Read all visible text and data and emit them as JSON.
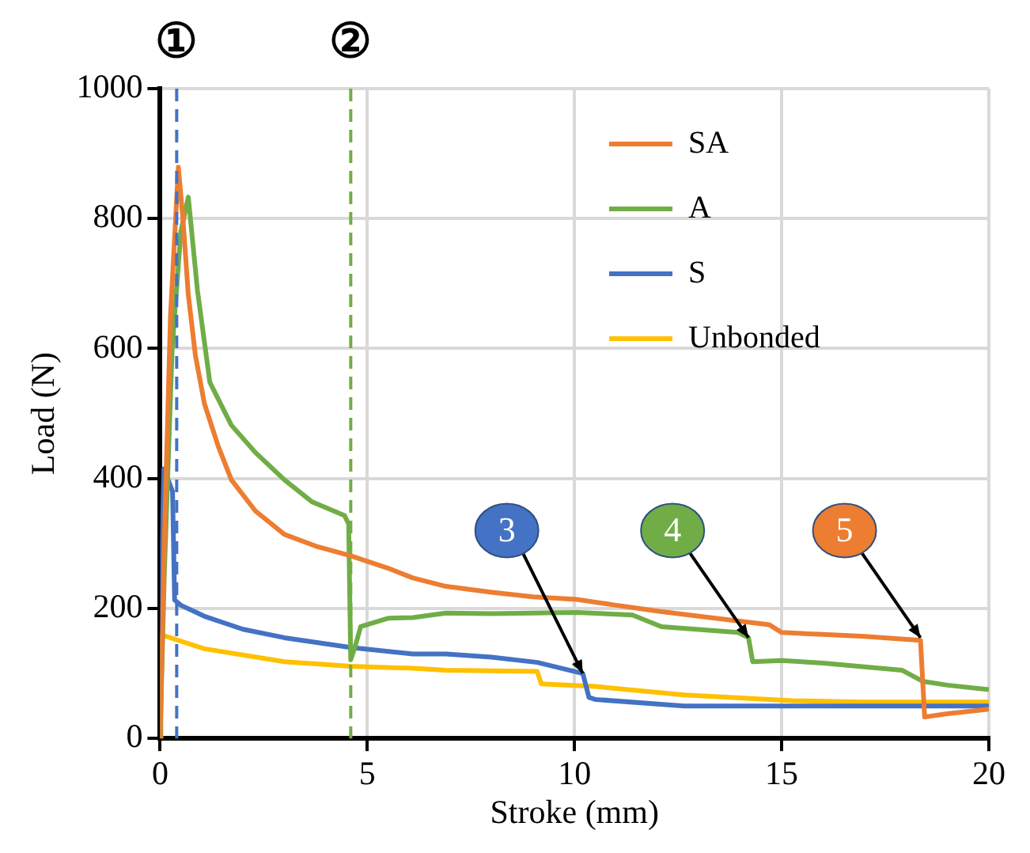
{
  "chart_data": {
    "type": "line",
    "xlabel": "Stroke (mm)",
    "ylabel": "Load (N)",
    "xlim": [
      0,
      20
    ],
    "xticks": [
      0,
      5,
      10,
      15,
      20
    ],
    "ylim": [
      0,
      1000
    ],
    "yticks": [
      0,
      200,
      400,
      600,
      800,
      1000
    ],
    "grid": true,
    "legend": "top right",
    "marker": "none",
    "line_style": "solid",
    "series": [
      {
        "name": "SA",
        "color": "#ed7d31",
        "x": [
          0,
          0.1,
          0.25,
          0.44,
          0.55,
          0.68,
          0.85,
          1.07,
          1.4,
          1.72,
          2.3,
          3.0,
          3.8,
          4.6,
          5.5,
          6.1,
          6.9,
          8,
          9,
          10.05,
          11,
          12,
          13,
          14.7,
          15,
          16,
          17,
          18.35,
          18.45,
          19,
          20
        ],
        "values": [
          0,
          300,
          650,
          879,
          800,
          683,
          590,
          515,
          450,
          398,
          350,
          314,
          295,
          281,
          262,
          247,
          234,
          225,
          218,
          214,
          205,
          196,
          188,
          175,
          163,
          160,
          157,
          151,
          33,
          38,
          45
        ]
      },
      {
        "name": "A",
        "color": "#70ad47",
        "x": [
          0,
          0.1,
          0.29,
          0.5,
          0.68,
          0.9,
          1.2,
          1.72,
          2.3,
          3.0,
          3.67,
          4.45,
          4.55,
          4.6,
          4.7,
          4.84,
          5.5,
          6.1,
          6.9,
          8,
          9,
          10.05,
          11.4,
          12.1,
          13.95,
          14.2,
          14.3,
          15,
          16,
          17.9,
          18.4,
          19,
          20
        ],
        "values": [
          0,
          250,
          599,
          780,
          833,
          690,
          548,
          482,
          440,
          398,
          364,
          343,
          330,
          121,
          140,
          172,
          185,
          186,
          193,
          192,
          193,
          194,
          190,
          172,
          163,
          155,
          118,
          120,
          116,
          105,
          88,
          82,
          75
        ]
      },
      {
        "name": "S",
        "color": "#4472c4",
        "x": [
          0,
          0.05,
          0.09,
          0.3,
          0.35,
          0.5,
          1.07,
          2,
          3,
          4.6,
          6.1,
          6.9,
          8,
          9.1,
          10.2,
          10.35,
          10.5,
          12.65,
          15.2,
          17,
          20
        ],
        "values": [
          0,
          300,
          415,
          380,
          213,
          205,
          188,
          168,
          155,
          140,
          130,
          130,
          125,
          117,
          100,
          63,
          60,
          50,
          50,
          50,
          50
        ]
      },
      {
        "name": "Unbonded",
        "color": "#ffc000",
        "x": [
          0,
          0.02,
          0.05,
          1.07,
          3,
          4.6,
          6.1,
          6.9,
          9.1,
          9.2,
          10.5,
          12.65,
          15.25,
          17,
          20
        ],
        "values": [
          0,
          140,
          159,
          138,
          118,
          111,
          108,
          105,
          103,
          84,
          80,
          67,
          58,
          56,
          56
        ]
      }
    ],
    "ref_lines": [
      {
        "axis": "x",
        "value": 0.4,
        "label": "①",
        "color": "#4472c4",
        "line_style": "dashed"
      },
      {
        "axis": "x",
        "value": 4.6,
        "label": "②",
        "color": "#70ad47",
        "line_style": "dashed"
      }
    ],
    "annotations": [
      {
        "text": "3",
        "x": 10.2,
        "y": 100
      },
      {
        "text": "4",
        "x": 14.2,
        "y": 155
      },
      {
        "text": "5",
        "x": 18.35,
        "y": 155
      }
    ]
  }
}
